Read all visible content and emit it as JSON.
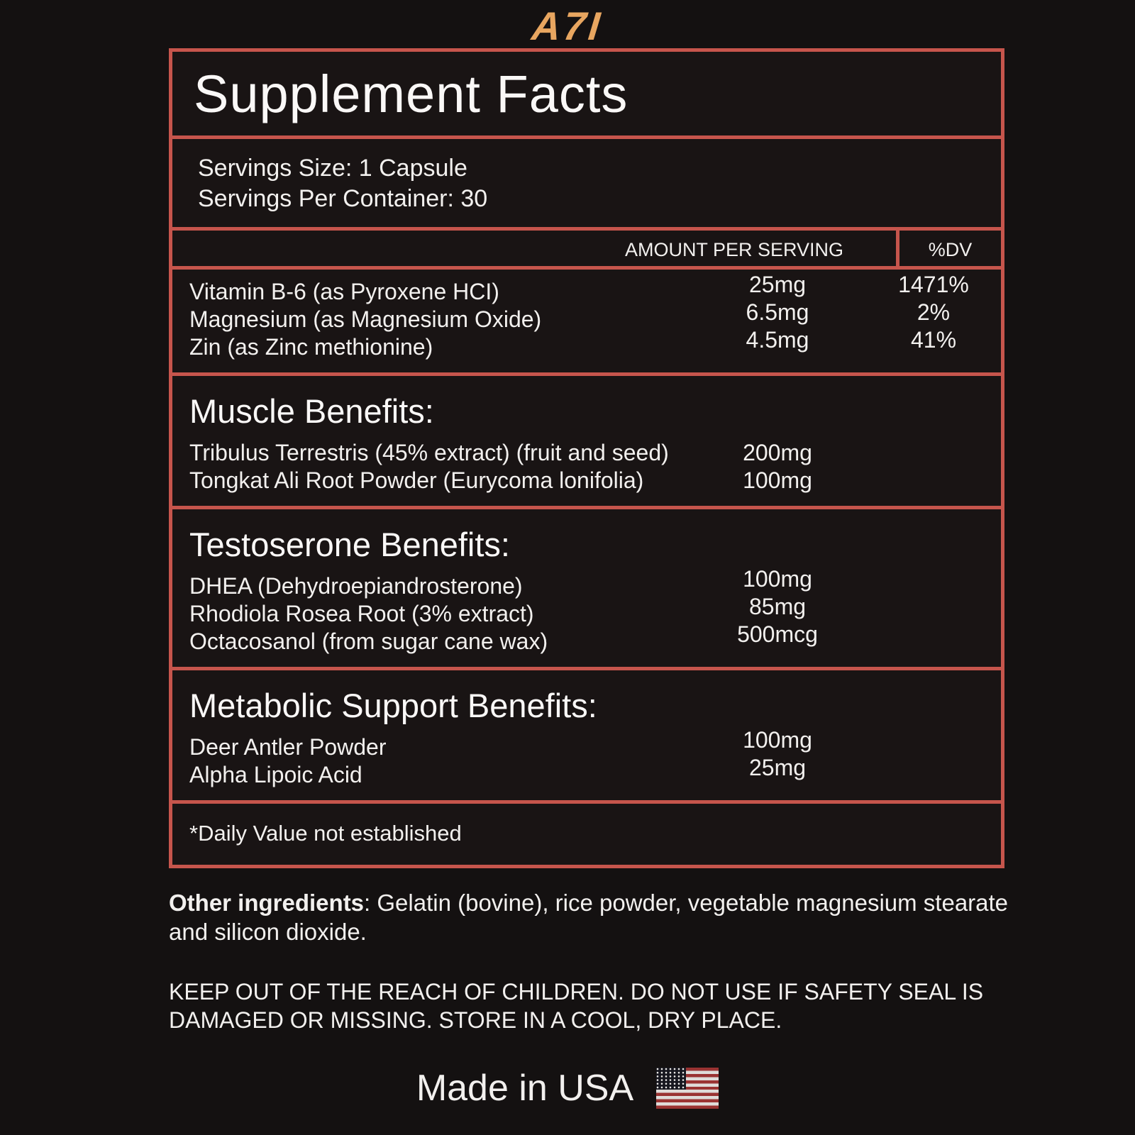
{
  "logo": "A7I",
  "panel": {
    "title": "Supplement Facts",
    "servings": {
      "size": "Servings Size: 1 Capsule",
      "per_container": "Servings Per Container: 30"
    },
    "columns": {
      "amount": "AMOUNT PER SERVING",
      "dv": "%DV"
    },
    "sections": [
      {
        "heading": "",
        "rows": [
          {
            "name": "Vitamin B-6 (as Pyroxene HCI)",
            "amount": "25mg",
            "dv": "1471%"
          },
          {
            "name": "Magnesium (as Magnesium Oxide)",
            "amount": "6.5mg",
            "dv": "2%"
          },
          {
            "name": "Zin (as Zinc methionine)",
            "amount": "4.5mg",
            "dv": "41%"
          }
        ]
      },
      {
        "heading": "Muscle Benefits:",
        "rows": [
          {
            "name": "Tribulus Terrestris (45% extract) (fruit and seed)",
            "amount": "200mg",
            "dv": ""
          },
          {
            "name": "Tongkat Ali Root Powder (Eurycoma lonifolia)",
            "amount": "100mg",
            "dv": ""
          }
        ]
      },
      {
        "heading": "Testoserone Benefits:",
        "rows": [
          {
            "name": "DHEA (Dehydroepiandrosterone)",
            "amount": "100mg",
            "dv": ""
          },
          {
            "name": "Rhodiola Rosea Root (3% extract)",
            "amount": "85mg",
            "dv": ""
          },
          {
            "name": "Octacosanol (from sugar cane wax)",
            "amount": "500mcg",
            "dv": ""
          }
        ]
      },
      {
        "heading": "Metabolic Support Benefits:",
        "rows": [
          {
            "name": "Deer Antler Powder",
            "amount": "100mg",
            "dv": ""
          },
          {
            "name": "Alpha Lipoic Acid",
            "amount": "25mg",
            "dv": ""
          }
        ]
      }
    ],
    "footnote": "*Daily Value not established"
  },
  "other_ingredients": {
    "label": "Other ingredients",
    "text": ": Gelatin (bovine), rice powder, vegetable magnesium stearate and silicon dioxide."
  },
  "warning": "KEEP OUT OF THE REACH OF CHILDREN. DO NOT USE IF SAFETY SEAL IS DAMAGED OR MISSING. STORE IN A COOL, DRY PLACE.",
  "made_in": "Made in USA",
  "colors": {
    "border": "#C6554C",
    "background": "#141111",
    "box_background": "#191414",
    "text": "#F2F0EE",
    "logo": "#E8A660",
    "flag_red": "#9A3332",
    "flag_white": "#DFDCD9",
    "flag_canton": "#17171F"
  }
}
